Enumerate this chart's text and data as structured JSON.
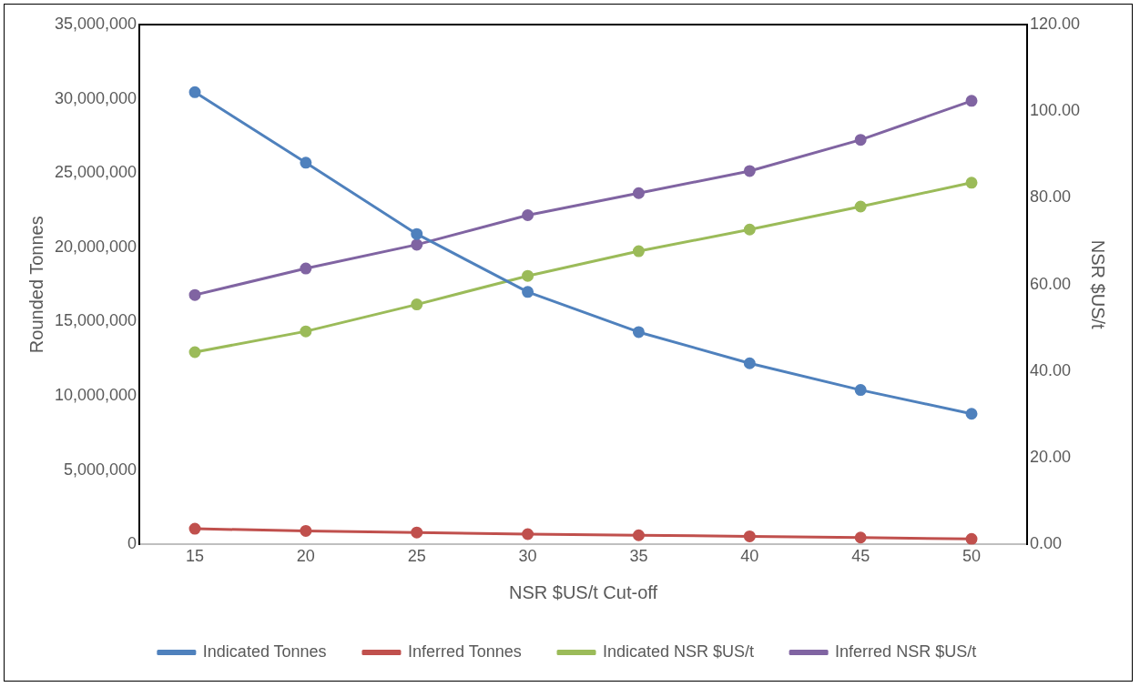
{
  "chart_data": {
    "type": "line",
    "xlabel": "NSR $US/t Cut-off",
    "ylabel": "Rounded Tonnes",
    "y2label": "NSR $US/t",
    "categories": [
      "15",
      "20",
      "25",
      "30",
      "35",
      "40",
      "45",
      "50"
    ],
    "series": [
      {
        "name": "Indicated Tonnes",
        "color": "#4f81bd",
        "values": [
          30450000,
          25700000,
          20900000,
          17000000,
          14300000,
          12200000,
          10400000,
          8800000
        ]
      },
      {
        "name": "Inferred Tonnes",
        "color": "#c0504d",
        "values": [
          1060000,
          920000,
          810000,
          700000,
          620000,
          550000,
          470000,
          370000
        ]
      },
      {
        "name": "Indicated NSR $US/t",
        "color": "#9bbb59",
        "axis": "y2",
        "values": [
          44.4,
          49.2,
          55.4,
          62.0,
          67.7,
          72.7,
          78.0,
          83.5
        ]
      },
      {
        "name": "Inferred NSR $US/t",
        "color": "#8064a2",
        "axis": "y2",
        "values": [
          57.6,
          63.7,
          69.2,
          76.0,
          81.1,
          86.2,
          93.4,
          102.4
        ]
      }
    ],
    "ylim": [
      0,
      35000000
    ],
    "yticks": [
      0,
      {
        "value": 5000000,
        "label": "5,000,000"
      },
      {
        "value": 10000000,
        "label": "10,000,000"
      },
      {
        "value": 15000000,
        "label": "15,000,000"
      },
      {
        "value": 20000000,
        "label": "20,000,000"
      },
      {
        "value": 25000000,
        "label": "25,000,000"
      },
      {
        "value": 30000000,
        "label": "30,000,000"
      },
      {
        "value": 35000000,
        "label": "35,000,000"
      }
    ],
    "y2lim": [
      0,
      120
    ],
    "y2ticks": [
      {
        "value": 0,
        "label": "0.00"
      },
      {
        "value": 20,
        "label": "20.00"
      },
      {
        "value": 40,
        "label": "40.00"
      },
      {
        "value": 60,
        "label": "60.00"
      },
      {
        "value": 80,
        "label": "80.00"
      },
      {
        "value": 100,
        "label": "100.00"
      },
      {
        "value": 120,
        "label": "120.00"
      }
    ],
    "grid": false,
    "legend": "bottom",
    "marker": "circle",
    "line_style": "solid"
  }
}
